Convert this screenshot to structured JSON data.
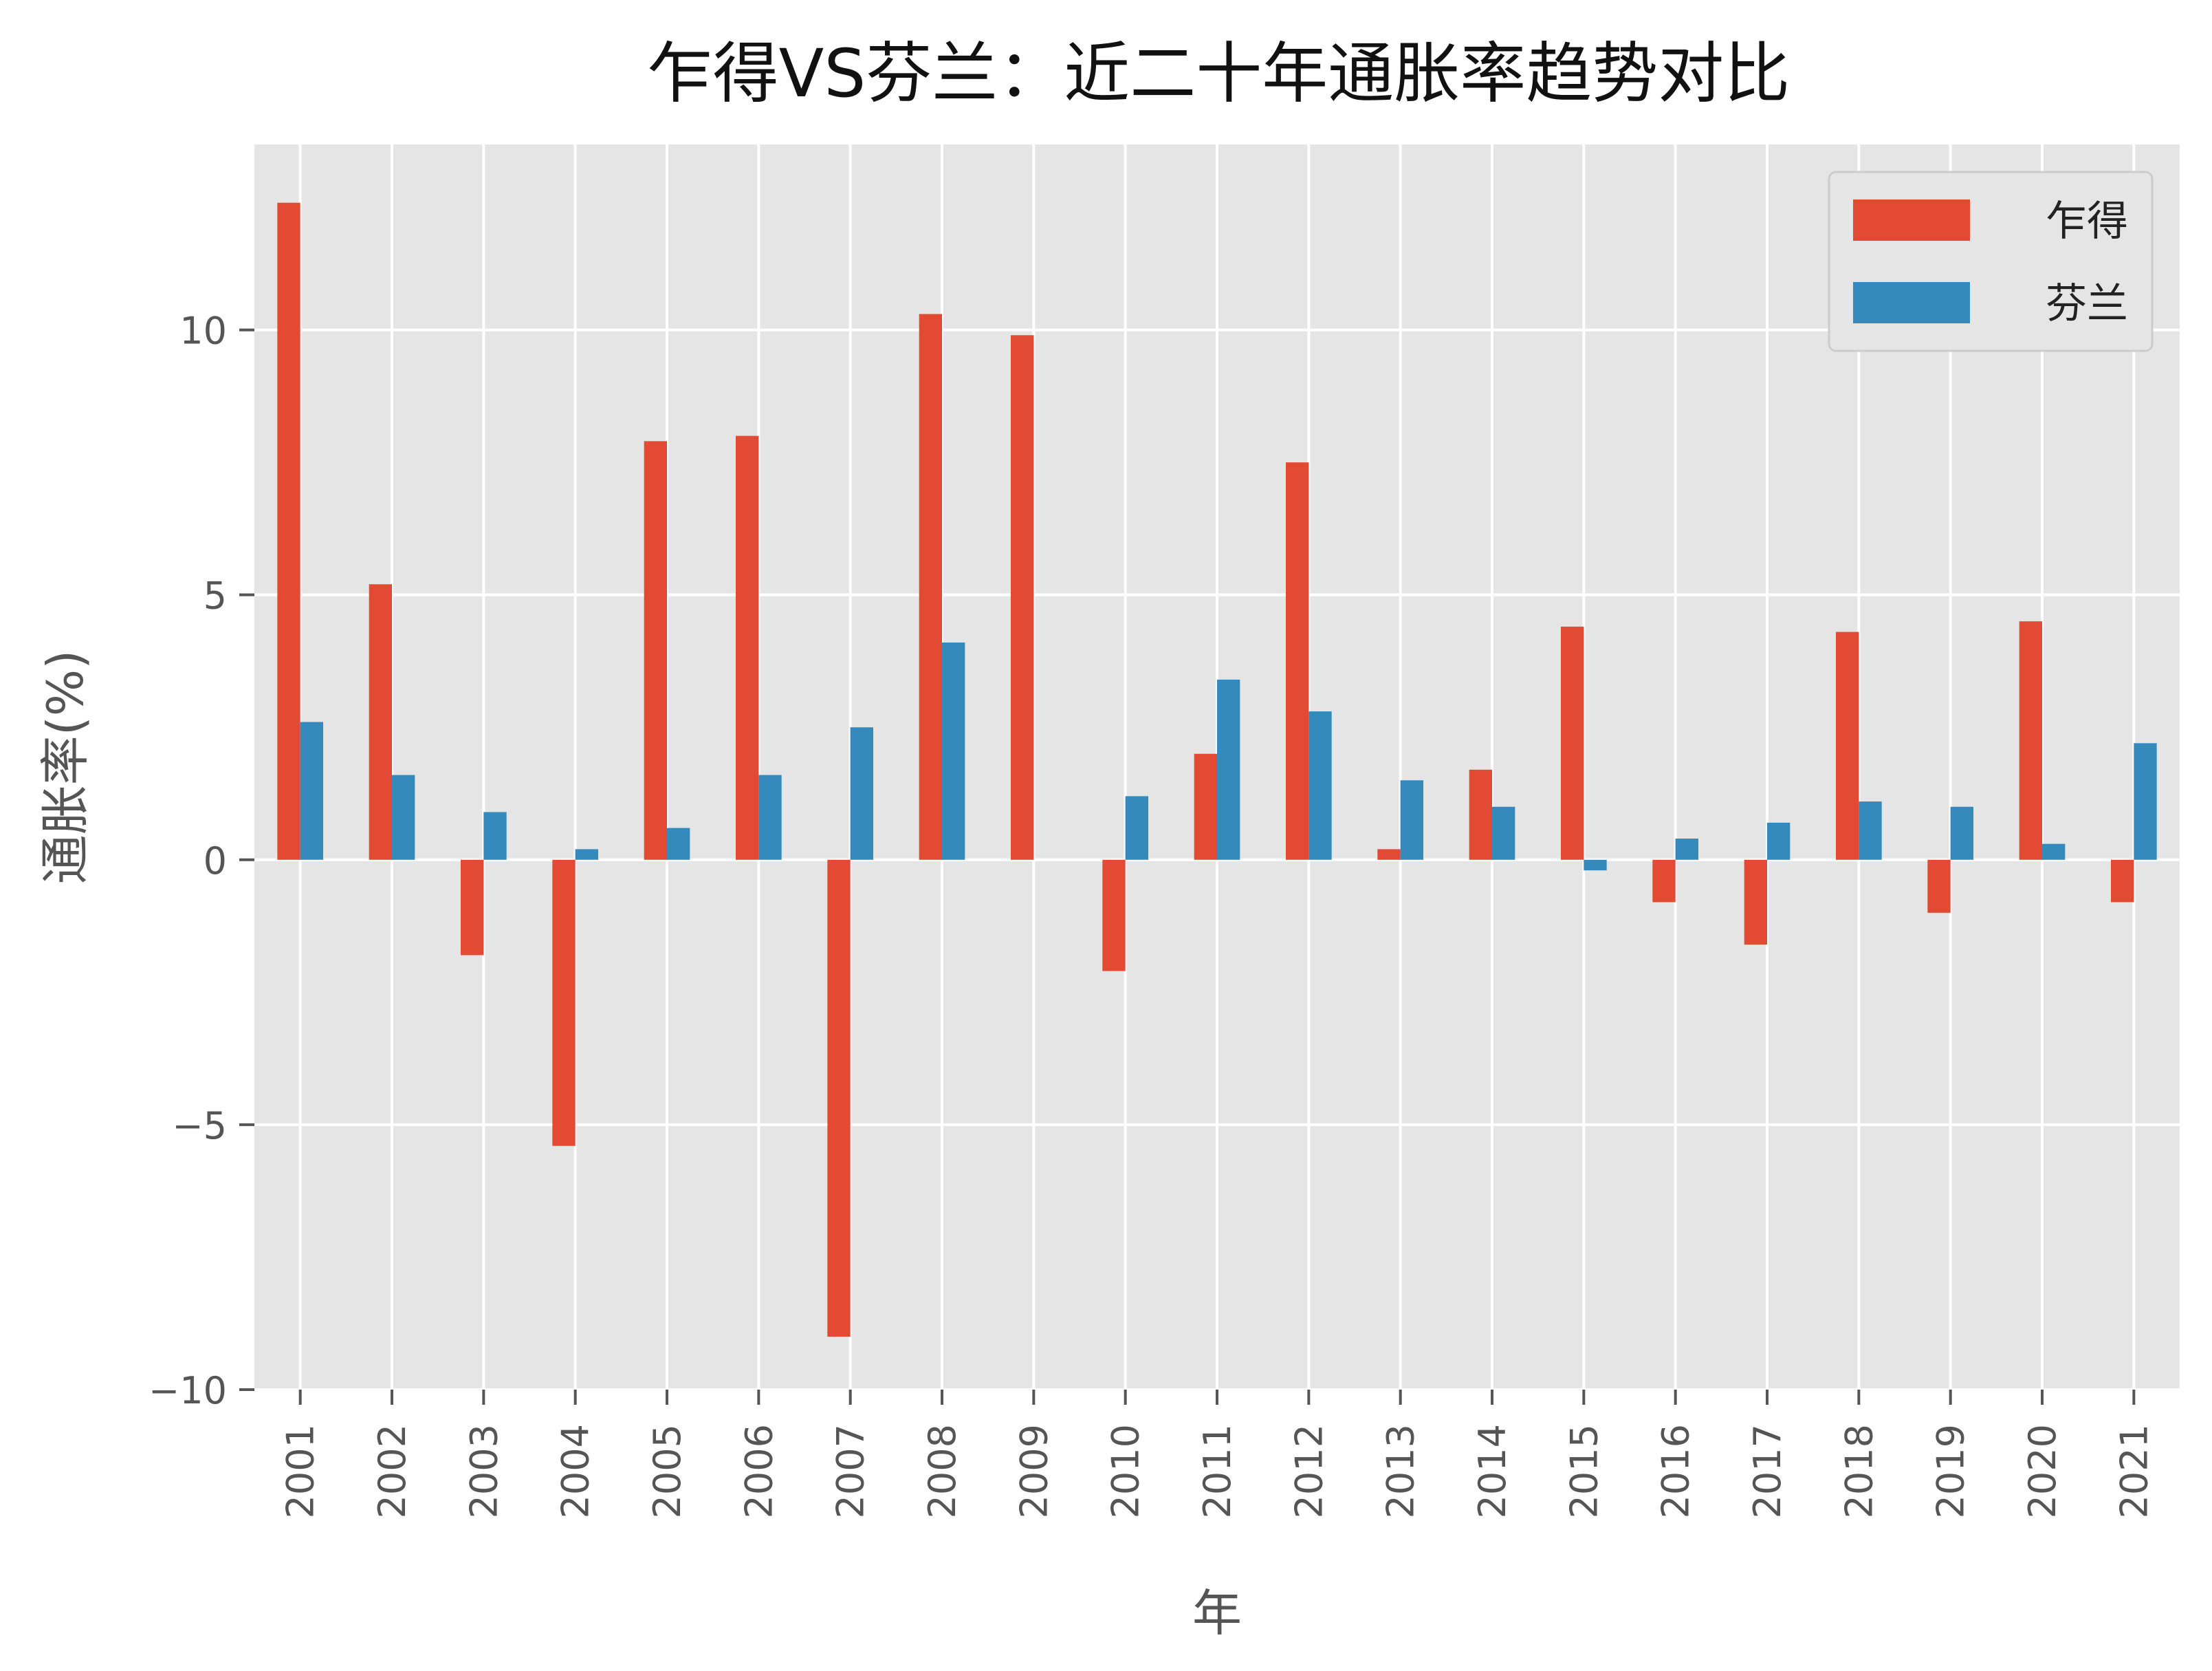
{
  "chart_data": {
    "type": "bar",
    "title": "乍得VS芬兰：近二十年通胀率趋势对比",
    "xlabel": "年",
    "ylabel": "通胀率(%)",
    "categories": [
      "2001",
      "2002",
      "2003",
      "2004",
      "2005",
      "2006",
      "2007",
      "2008",
      "2009",
      "2010",
      "2011",
      "2012",
      "2013",
      "2014",
      "2015",
      "2016",
      "2017",
      "2018",
      "2019",
      "2020",
      "2021"
    ],
    "series": [
      {
        "name": "乍得",
        "color": "#E24A33",
        "values": [
          12.4,
          5.2,
          -1.8,
          -5.4,
          7.9,
          8.0,
          -9.0,
          10.3,
          9.9,
          -2.1,
          2.0,
          7.5,
          0.2,
          1.7,
          4.4,
          -0.8,
          -1.6,
          4.3,
          -1.0,
          4.5,
          -0.8
        ]
      },
      {
        "name": "芬兰",
        "color": "#348ABD",
        "values": [
          2.6,
          1.6,
          0.9,
          0.2,
          0.6,
          1.6,
          2.5,
          4.1,
          0.0,
          1.2,
          3.4,
          2.8,
          1.5,
          1.0,
          -0.2,
          0.4,
          0.7,
          1.1,
          1.0,
          0.3,
          2.2
        ]
      }
    ],
    "ylim": [
      -10,
      13.5
    ],
    "yticks": [
      -10,
      -5,
      0,
      5,
      10
    ],
    "ytick_labels": [
      "−10",
      "−5",
      "0",
      "5",
      "10"
    ],
    "grid": true,
    "legend_position": "top-right",
    "background": "#E5E5E5",
    "grid_color": "#FFFFFF"
  }
}
